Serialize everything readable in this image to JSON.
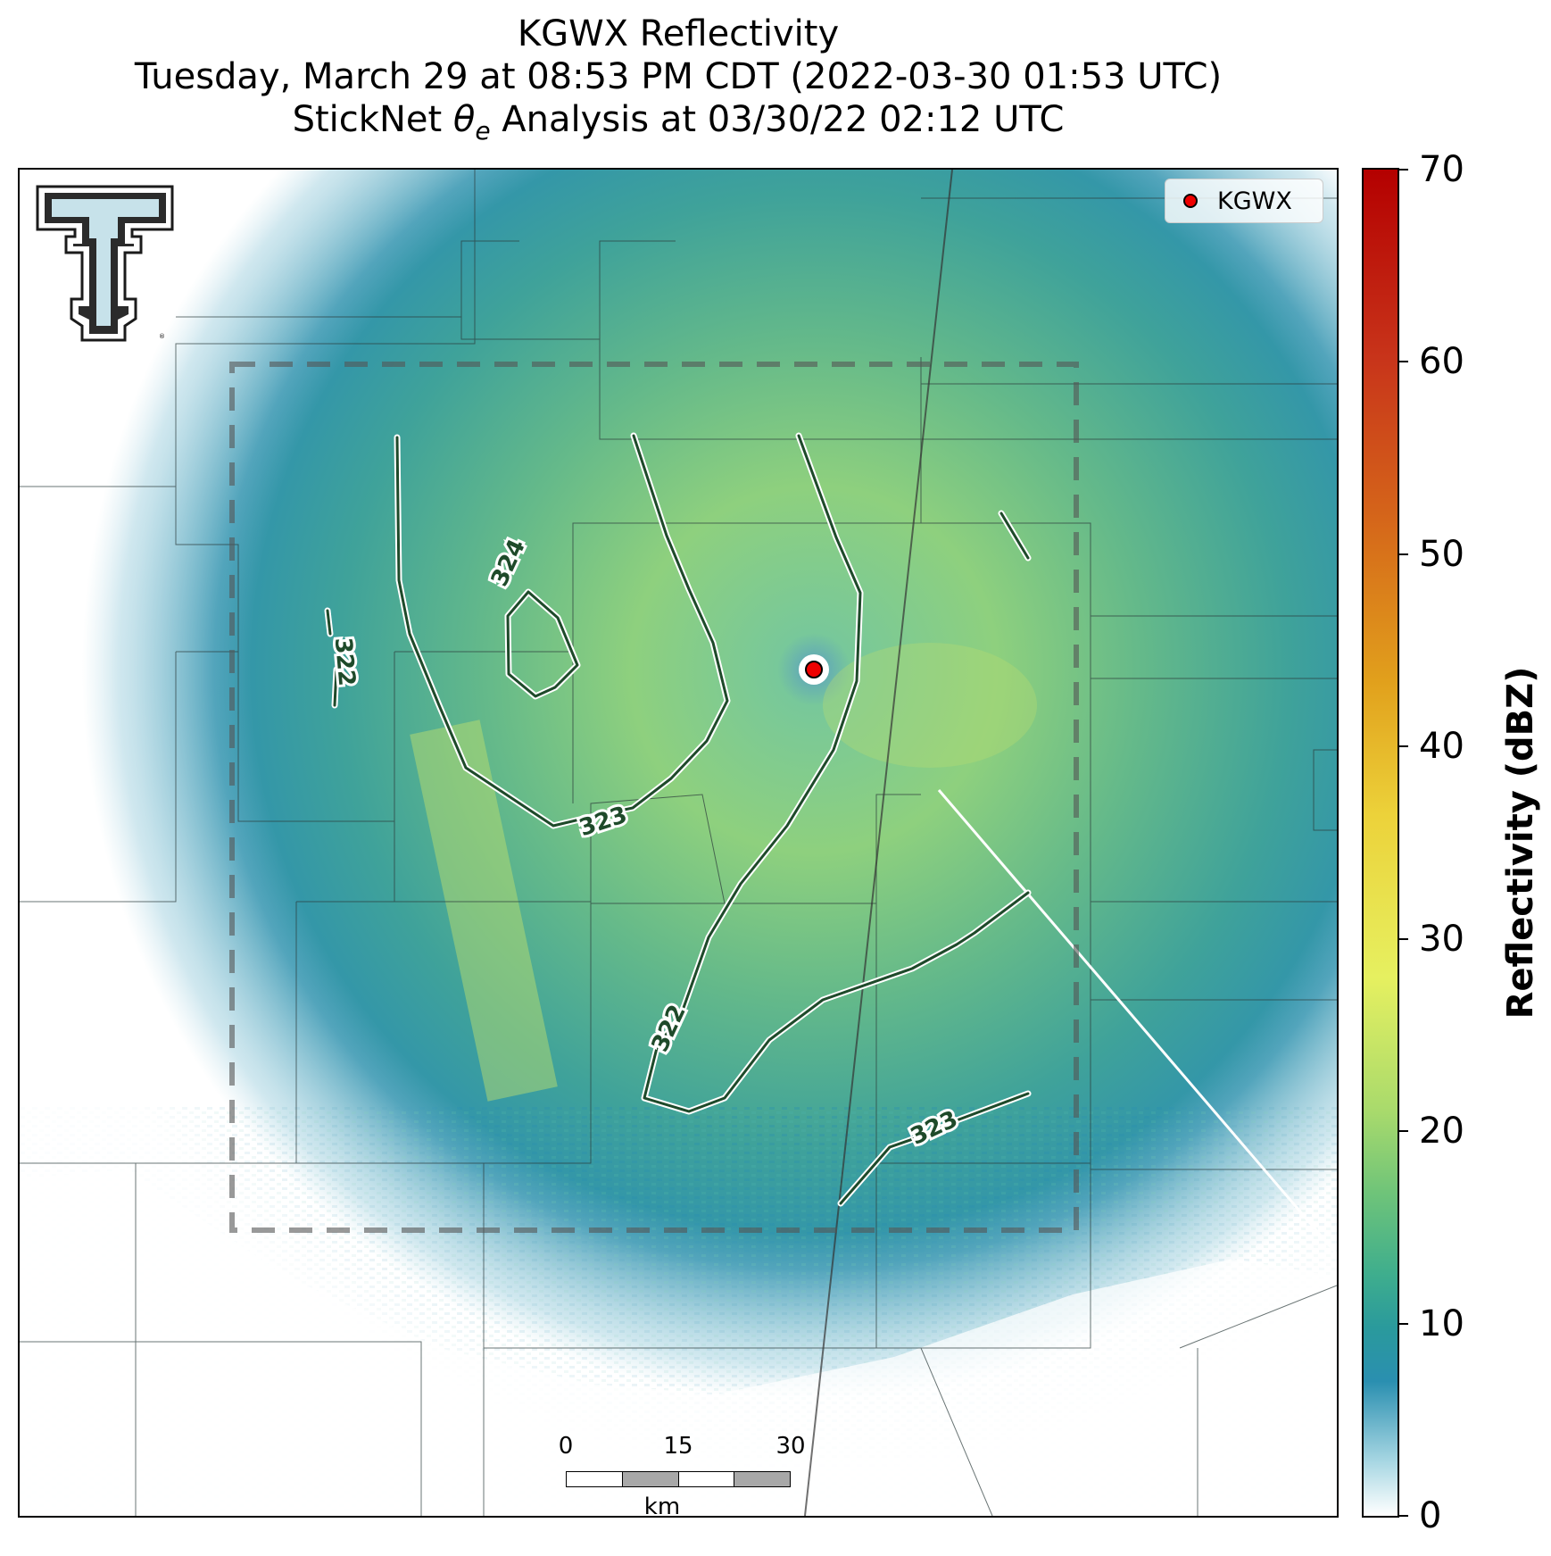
{
  "title": {
    "line1": "KGWX Reflectivity",
    "line2": "Tuesday, March 29 at 08:53 PM CDT (2022-03-30 01:53 UTC)",
    "line3_prefix": "StickNet ",
    "line3_symbol": "θ",
    "line3_subscript": "e",
    "line3_suffix": " Analysis at 03/30/22 02:12 UTC"
  },
  "legend": {
    "label": "KGWX",
    "marker_color": "#ee0000"
  },
  "radar_site": {
    "name": "KGWX",
    "color": "#ee0000"
  },
  "colorbar": {
    "label": "Reflectivity (dBZ)",
    "min": 0,
    "max": 70,
    "ticks": [
      "0",
      "10",
      "20",
      "30",
      "40",
      "50",
      "60",
      "70"
    ],
    "colors": [
      "#ffffff",
      "#2a8fb0",
      "#6fc479",
      "#e6f060",
      "#e1a01c",
      "#c8341a",
      "#b40000"
    ]
  },
  "contours": {
    "color": "#1e4a2a",
    "labels": [
      "322",
      "324",
      "323",
      "322",
      "323"
    ]
  },
  "scale_bar": {
    "ticks": [
      "0",
      "15",
      "30"
    ],
    "unit": "km"
  },
  "logo": {
    "icon": "texas-tech-double-t-logo"
  }
}
